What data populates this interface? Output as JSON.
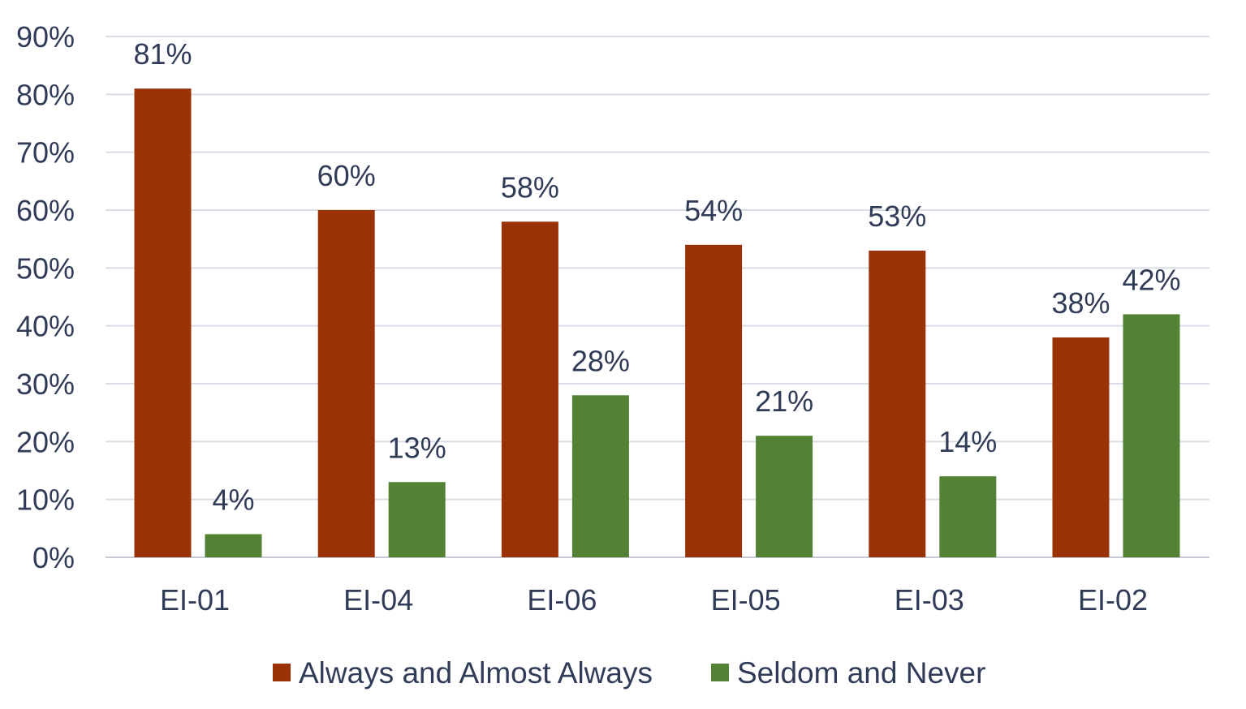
{
  "chart_data": {
    "type": "bar",
    "categories": [
      "EI-01",
      "EI-04",
      "EI-06",
      "EI-05",
      "EI-03",
      "EI-02"
    ],
    "series": [
      {
        "name": "Always and Almost Always",
        "color": "#9a3208",
        "values": [
          81,
          60,
          58,
          54,
          53,
          38
        ]
      },
      {
        "name": "Seldom and Never",
        "color": "#548235",
        "values": [
          4,
          13,
          28,
          21,
          14,
          42
        ]
      }
    ],
    "data_labels": [
      [
        "81%",
        "60%",
        "58%",
        "54%",
        "53%",
        "38%"
      ],
      [
        "4%",
        "13%",
        "28%",
        "21%",
        "14%",
        "42%"
      ]
    ],
    "y_ticks": [
      "0%",
      "10%",
      "20%",
      "30%",
      "40%",
      "50%",
      "60%",
      "70%",
      "80%",
      "90%"
    ],
    "ylim": [
      0,
      90
    ],
    "grid": true,
    "legend_position": "bottom",
    "title": "",
    "xlabel": "",
    "ylabel": ""
  }
}
